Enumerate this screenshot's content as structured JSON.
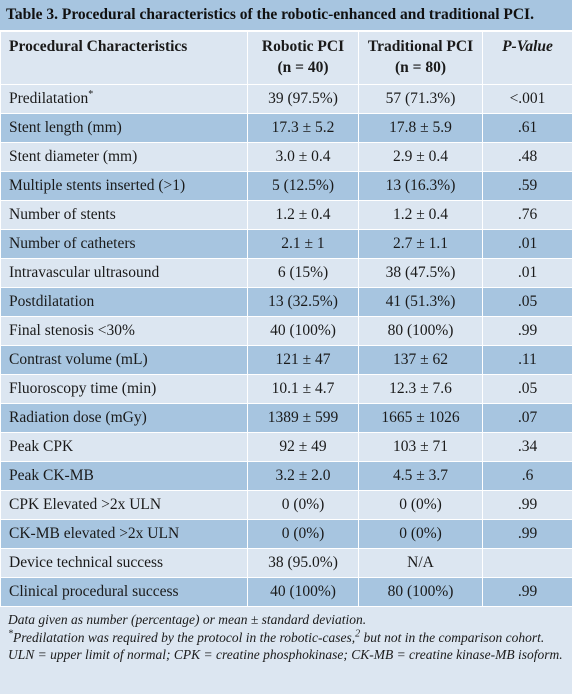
{
  "table": {
    "caption": "Table 3. Procedural characteristics of the robotic-enhanced and traditional PCI.",
    "headers": {
      "characteristic": "Procedural Characteristics",
      "robotic": "Robotic PCI",
      "robotic_n": "(n = 40)",
      "traditional": "Traditional PCI",
      "traditional_n": "(n = 80)",
      "pvalue": "P-Value"
    },
    "rows": [
      {
        "label": "Predilatation",
        "marker": "*",
        "robotic": "39 (97.5%)",
        "traditional": "57 (71.3%)",
        "p": "<.001"
      },
      {
        "label": "Stent length (mm)",
        "robotic": "17.3 ± 5.2",
        "traditional": "17.8 ± 5.9",
        "p": ".61"
      },
      {
        "label": "Stent diameter (mm)",
        "robotic": "3.0 ± 0.4",
        "traditional": "2.9 ± 0.4",
        "p": ".48"
      },
      {
        "label": "Multiple stents inserted  (>1)",
        "robotic": "5 (12.5%)",
        "traditional": "13 (16.3%)",
        "p": ".59"
      },
      {
        "label": "Number of stents",
        "robotic": "1.2 ± 0.4",
        "traditional": "1.2 ± 0.4",
        "p": ".76"
      },
      {
        "label": "Number of catheters",
        "robotic": "2.1 ± 1",
        "traditional": "2.7 ± 1.1",
        "p": ".01"
      },
      {
        "label": "Intravascular ultrasound",
        "robotic": "6 (15%)",
        "traditional": "38 (47.5%)",
        "p": ".01"
      },
      {
        "label": "Postdilatation",
        "robotic": "13 (32.5%)",
        "traditional": "41 (51.3%)",
        "p": ".05"
      },
      {
        "label": "Final stenosis <30%",
        "robotic": "40 (100%)",
        "traditional": "80 (100%)",
        "p": ".99"
      },
      {
        "label": "Contrast volume (mL)",
        "robotic": "121 ± 47",
        "traditional": "137 ± 62",
        "p": ".11"
      },
      {
        "label": "Fluoroscopy time (min)",
        "robotic": "10.1 ± 4.7",
        "traditional": "12.3 ± 7.6",
        "p": ".05"
      },
      {
        "label": "Radiation dose (mGy)",
        "robotic": "1389 ± 599",
        "traditional": "1665 ± 1026",
        "p": ".07"
      },
      {
        "label": "Peak CPK",
        "robotic": "92 ± 49",
        "traditional": "103 ± 71",
        "p": ".34"
      },
      {
        "label": "Peak CK-MB",
        "robotic": "3.2 ± 2.0",
        "traditional": "4.5 ± 3.7",
        "p": ".6"
      },
      {
        "label": "CPK Elevated >2x ULN",
        "robotic": "0 (0%)",
        "traditional": "0 (0%)",
        "p": ".99"
      },
      {
        "label": "CK-MB elevated >2x ULN",
        "robotic": "0 (0%)",
        "traditional": "0 (0%)",
        "p": ".99"
      },
      {
        "label": "Device technical success",
        "robotic": "38 (95.0%)",
        "traditional": "N/A",
        "p": ""
      },
      {
        "label": "Clinical procedural success",
        "robotic": "40 (100%)",
        "traditional": "80 (100%)",
        "p": ".99"
      }
    ],
    "footnotes": {
      "line1": "Data given as number (percentage) or mean ± standard deviation.",
      "line2_marker": "*",
      "line2_a": "Predilatation was required by the protocol in the robotic-cases,",
      "line2_ref": "2",
      "line2_b": " but not in the comparison cohort.",
      "line3": "ULN = upper limit of normal; CPK = creatine phosphokinase; CK-MB = creatine kinase-MB isoform."
    }
  }
}
